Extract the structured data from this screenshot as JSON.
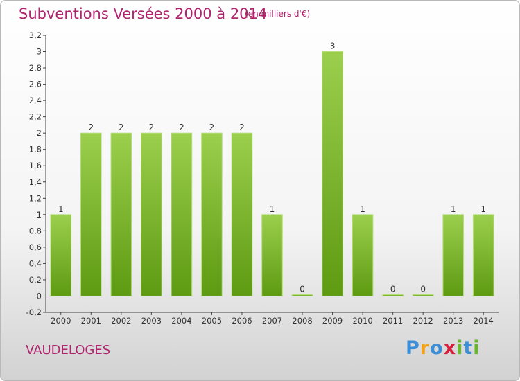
{
  "header": {
    "title": "Subventions Versées 2000 à 2014",
    "unit": "(en milliers d'€)"
  },
  "footer": {
    "place": "VAUDELOGES",
    "logo": "Proxiti"
  },
  "colors": {
    "title": "#b0246e",
    "bar_top": "#9bcf4d",
    "bar_bottom": "#5e9a12",
    "logo": [
      "#3a8fd8",
      "#f0a21c",
      "#3a8fd8",
      "#d81e3c",
      "#66b82a",
      "#3a8fd8",
      "#66b82a"
    ]
  },
  "chart_data": {
    "type": "bar",
    "categories": [
      "2000",
      "2001",
      "2002",
      "2003",
      "2004",
      "2005",
      "2006",
      "2007",
      "2008",
      "2009",
      "2010",
      "2011",
      "2012",
      "2013",
      "2014"
    ],
    "values": [
      1,
      2,
      2,
      2,
      2,
      2,
      2,
      1,
      0,
      3,
      1,
      0,
      0,
      1,
      1
    ],
    "value_labels": [
      "1",
      "2",
      "2",
      "2",
      "2",
      "2",
      "2",
      "1",
      "0",
      "3",
      "1",
      "0",
      "0",
      "1",
      "1"
    ],
    "ylim": [
      -0.2,
      3.2
    ],
    "yticks": [
      -0.2,
      0,
      0.2,
      0.4,
      0.6,
      0.8,
      1,
      1.2,
      1.4,
      1.6,
      1.8,
      2,
      2.2,
      2.4,
      2.6,
      2.8,
      3,
      3.2
    ],
    "ytick_labels": [
      "-0,2",
      "0",
      "0,2",
      "0,4",
      "0,6",
      "0,8",
      "1",
      "1,2",
      "1,4",
      "1,6",
      "1,8",
      "2",
      "2,2",
      "2,4",
      "2,6",
      "2,8",
      "3",
      "3,2"
    ],
    "title": "Subventions Versées 2000 à 2014",
    "xlabel": "",
    "ylabel": "",
    "grid": false
  }
}
